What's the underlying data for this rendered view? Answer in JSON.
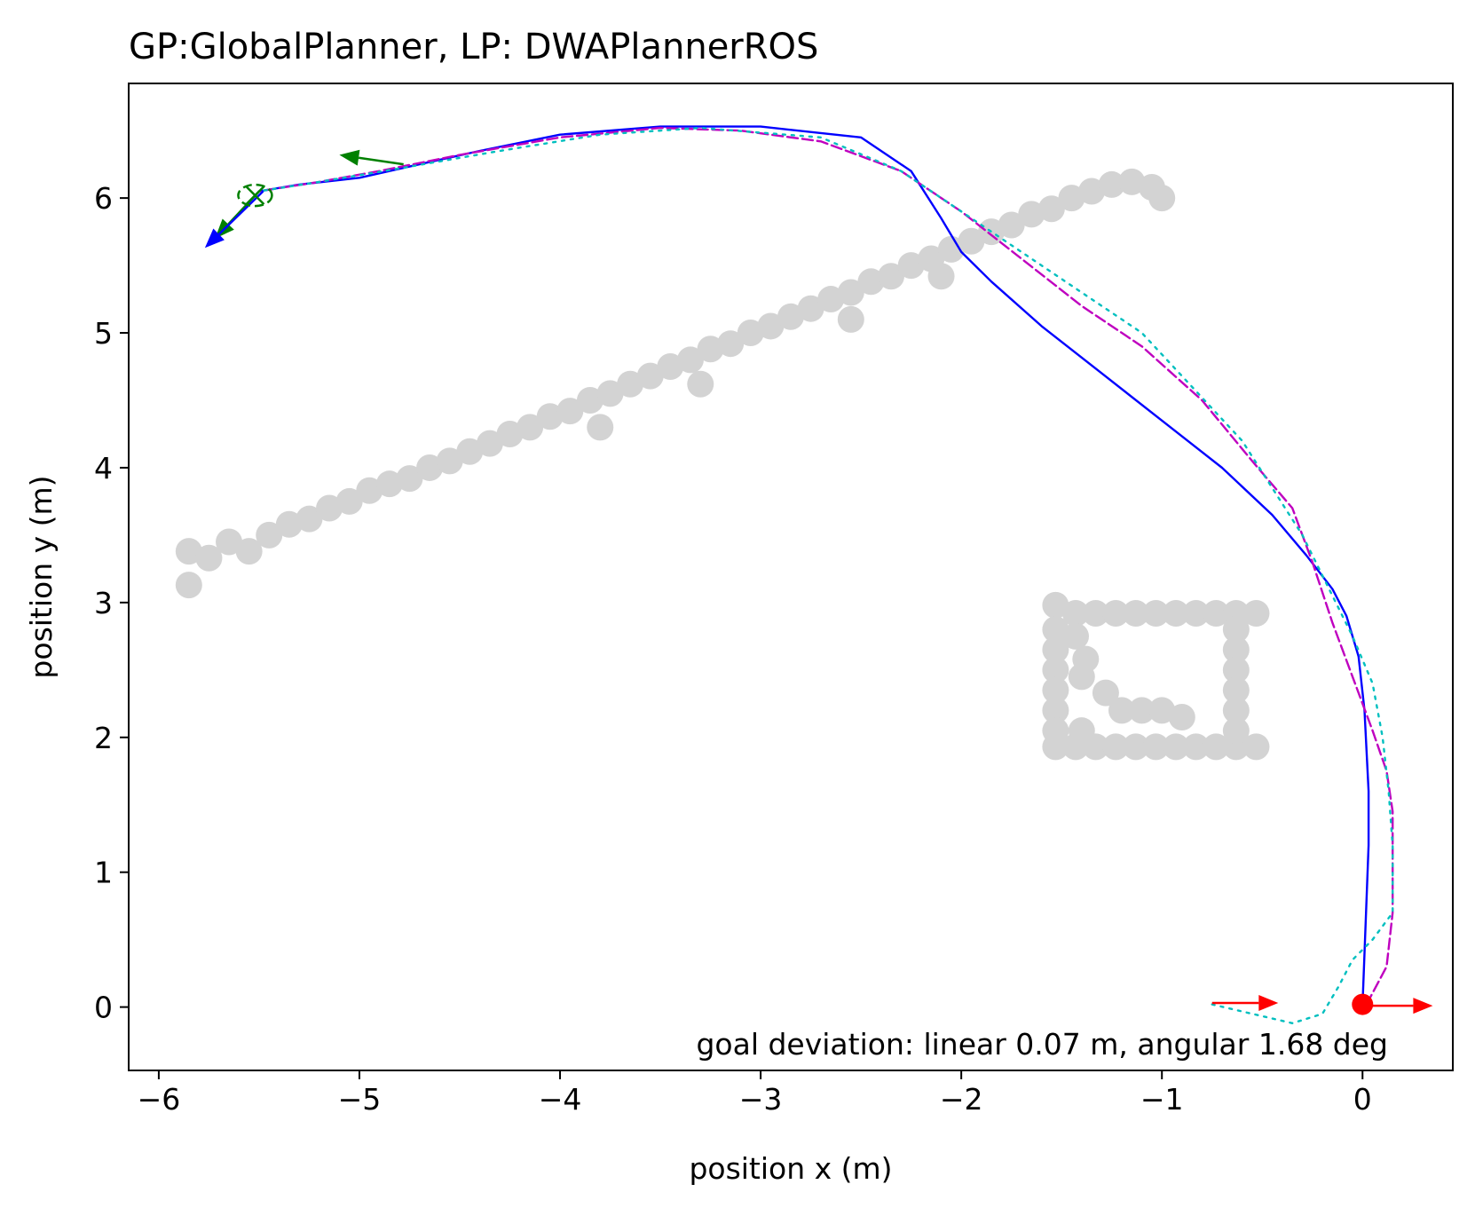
{
  "chart_data": {
    "type": "line",
    "title": "GP:GlobalPlanner, LP: DWAPlannerROS",
    "xlabel": "position x (m)",
    "ylabel": "position y (m)",
    "xlim": [
      -6.15,
      0.45
    ],
    "ylim": [
      -0.47,
      6.85
    ],
    "xticks": [
      -6,
      -5,
      -4,
      -3,
      -2,
      -1,
      0
    ],
    "xtick_labels": [
      "−6",
      "−5",
      "−4",
      "−3",
      "−2",
      "−1",
      "0"
    ],
    "yticks": [
      0,
      1,
      2,
      3,
      4,
      5,
      6
    ],
    "ytick_labels": [
      "0",
      "1",
      "2",
      "3",
      "4",
      "5",
      "6"
    ],
    "grid": false,
    "legend": false,
    "annotation": "goal deviation: linear 0.07 m, angular 1.68 deg",
    "obstacle_color": "#d3d3d3",
    "obstacles": {
      "wall_points": [
        [
          -5.85,
          3.13
        ],
        [
          -5.85,
          3.38
        ],
        [
          -5.75,
          3.33
        ],
        [
          -5.65,
          3.45
        ],
        [
          -5.55,
          3.38
        ],
        [
          -5.45,
          3.5
        ],
        [
          -5.35,
          3.58
        ],
        [
          -5.25,
          3.62
        ],
        [
          -5.15,
          3.7
        ],
        [
          -5.05,
          3.75
        ],
        [
          -4.95,
          3.83
        ],
        [
          -4.85,
          3.88
        ],
        [
          -4.75,
          3.92
        ],
        [
          -4.65,
          4.0
        ],
        [
          -4.55,
          4.05
        ],
        [
          -4.45,
          4.12
        ],
        [
          -4.35,
          4.18
        ],
        [
          -4.25,
          4.25
        ],
        [
          -4.15,
          4.3
        ],
        [
          -4.05,
          4.38
        ],
        [
          -3.95,
          4.42
        ],
        [
          -3.85,
          4.5
        ],
        [
          -3.75,
          4.55
        ],
        [
          -3.65,
          4.62
        ],
        [
          -3.55,
          4.68
        ],
        [
          -3.45,
          4.75
        ],
        [
          -3.35,
          4.8
        ],
        [
          -3.25,
          4.88
        ],
        [
          -3.15,
          4.92
        ],
        [
          -3.05,
          5.0
        ],
        [
          -2.95,
          5.05
        ],
        [
          -2.85,
          5.12
        ],
        [
          -2.75,
          5.18
        ],
        [
          -2.65,
          5.25
        ],
        [
          -2.55,
          5.3
        ],
        [
          -2.45,
          5.38
        ],
        [
          -2.35,
          5.42
        ],
        [
          -2.25,
          5.5
        ],
        [
          -2.15,
          5.55
        ],
        [
          -2.05,
          5.62
        ],
        [
          -1.95,
          5.68
        ],
        [
          -1.85,
          5.75
        ],
        [
          -1.75,
          5.8
        ],
        [
          -1.65,
          5.88
        ],
        [
          -1.55,
          5.92
        ],
        [
          -1.45,
          6.0
        ],
        [
          -1.35,
          6.05
        ],
        [
          -1.25,
          6.1
        ],
        [
          -1.15,
          6.12
        ],
        [
          -1.05,
          6.08
        ],
        [
          -1.0,
          6.0
        ],
        [
          -3.8,
          4.3
        ],
        [
          -3.3,
          4.62
        ],
        [
          -2.55,
          5.1
        ],
        [
          -2.1,
          5.42
        ]
      ],
      "box_points": [
        [
          -1.53,
          2.98
        ],
        [
          -1.43,
          2.92
        ],
        [
          -1.33,
          2.92
        ],
        [
          -1.23,
          2.92
        ],
        [
          -1.13,
          2.92
        ],
        [
          -1.03,
          2.92
        ],
        [
          -0.93,
          2.92
        ],
        [
          -0.83,
          2.92
        ],
        [
          -0.73,
          2.92
        ],
        [
          -0.63,
          2.92
        ],
        [
          -0.53,
          2.92
        ],
        [
          -1.53,
          2.8
        ],
        [
          -1.53,
          2.65
        ],
        [
          -1.53,
          2.5
        ],
        [
          -1.53,
          2.35
        ],
        [
          -1.53,
          2.2
        ],
        [
          -1.53,
          2.05
        ],
        [
          -1.53,
          1.93
        ],
        [
          -1.43,
          1.93
        ],
        [
          -1.33,
          1.93
        ],
        [
          -1.23,
          1.93
        ],
        [
          -1.13,
          1.93
        ],
        [
          -1.03,
          1.93
        ],
        [
          -0.93,
          1.93
        ],
        [
          -0.83,
          1.93
        ],
        [
          -0.73,
          1.93
        ],
        [
          -0.63,
          1.93
        ],
        [
          -0.53,
          1.93
        ],
        [
          -0.63,
          2.8
        ],
        [
          -0.63,
          2.65
        ],
        [
          -0.63,
          2.5
        ],
        [
          -0.63,
          2.35
        ],
        [
          -0.63,
          2.2
        ],
        [
          -0.63,
          2.05
        ],
        [
          -1.38,
          2.58
        ],
        [
          -1.4,
          2.45
        ],
        [
          -1.28,
          2.33
        ],
        [
          -1.2,
          2.2
        ],
        [
          -1.1,
          2.2
        ],
        [
          -1.0,
          2.2
        ],
        [
          -0.9,
          2.15
        ],
        [
          -1.4,
          2.05
        ],
        [
          -1.43,
          2.75
        ]
      ]
    },
    "series": [
      {
        "color": "#0000ff",
        "style": "solid",
        "x": [
          0.0,
          0.01,
          0.02,
          0.03,
          0.03,
          0.02,
          0.01,
          -0.02,
          -0.08,
          -0.15,
          -0.28,
          -0.45,
          -0.7,
          -1.0,
          -1.3,
          -1.6,
          -1.85,
          -2.0,
          -2.1,
          -2.25,
          -2.5,
          -3.0,
          -3.5,
          -4.0,
          -4.4,
          -4.7,
          -5.0,
          -5.3,
          -5.5
        ],
        "y": [
          0.02,
          0.4,
          0.8,
          1.2,
          1.6,
          1.9,
          2.2,
          2.6,
          2.9,
          3.1,
          3.35,
          3.65,
          4.0,
          4.35,
          4.7,
          5.05,
          5.38,
          5.6,
          5.85,
          6.2,
          6.45,
          6.53,
          6.53,
          6.47,
          6.35,
          6.25,
          6.15,
          6.1,
          6.05
        ]
      },
      {
        "color": "#bf00bf",
        "style": "dashed",
        "x": [
          0.02,
          0.12,
          0.15,
          0.15,
          0.12,
          0.05,
          -0.05,
          -0.15,
          -0.25,
          -0.35,
          -0.55,
          -0.8,
          -1.1,
          -1.4,
          -1.7,
          -2.0,
          -2.3,
          -2.7,
          -3.1,
          -3.5,
          -4.0,
          -4.5,
          -4.9,
          -5.2,
          -5.5
        ],
        "y": [
          0.02,
          0.3,
          0.7,
          1.45,
          1.75,
          2.05,
          2.45,
          2.85,
          3.3,
          3.7,
          4.05,
          4.5,
          4.9,
          5.2,
          5.55,
          5.9,
          6.2,
          6.42,
          6.5,
          6.52,
          6.45,
          6.32,
          6.2,
          6.12,
          6.05
        ]
      },
      {
        "color": "#00bfbf",
        "style": "dotted",
        "x": [
          -0.75,
          -0.55,
          -0.35,
          -0.2,
          -0.12,
          -0.05,
          0.05,
          0.15,
          0.15,
          0.13,
          0.1,
          0.05,
          -0.05,
          -0.15,
          -0.3,
          -0.45,
          -0.6,
          -0.85,
          -1.1,
          -1.4,
          -1.7,
          -2.0,
          -2.3,
          -2.7,
          -3.3,
          -3.8,
          -4.3,
          -4.8,
          -5.2,
          -5.5
        ],
        "y": [
          0.02,
          -0.05,
          -0.12,
          -0.05,
          0.15,
          0.35,
          0.5,
          0.7,
          1.2,
          1.6,
          2.0,
          2.4,
          2.75,
          3.05,
          3.5,
          3.85,
          4.2,
          4.6,
          5.0,
          5.3,
          5.6,
          5.9,
          6.2,
          6.45,
          6.52,
          6.47,
          6.35,
          6.22,
          6.12,
          6.05
        ]
      }
    ],
    "markers": {
      "start_dot": {
        "x": 0.0,
        "y": 0.02,
        "color": "#ff0000"
      },
      "goal_ellipse": {
        "x": -5.52,
        "y": 6.02,
        "color": "#008000"
      }
    },
    "arrows": [
      {
        "color": "#ff0000",
        "x0": -0.75,
        "y0": 0.03,
        "x1": -0.42,
        "y1": 0.03
      },
      {
        "color": "#ff0000",
        "x0": 0.02,
        "y0": 0.01,
        "x1": 0.35,
        "y1": 0.01
      },
      {
        "color": "#008000",
        "x0": -4.78,
        "y0": 6.25,
        "x1": -5.1,
        "y1": 6.32
      },
      {
        "color": "#008000",
        "x0": -5.5,
        "y0": 6.05,
        "x1": -5.72,
        "y1": 5.7
      },
      {
        "color": "#0000ff",
        "x0": -5.48,
        "y0": 6.05,
        "x1": -5.77,
        "y1": 5.63
      }
    ]
  }
}
